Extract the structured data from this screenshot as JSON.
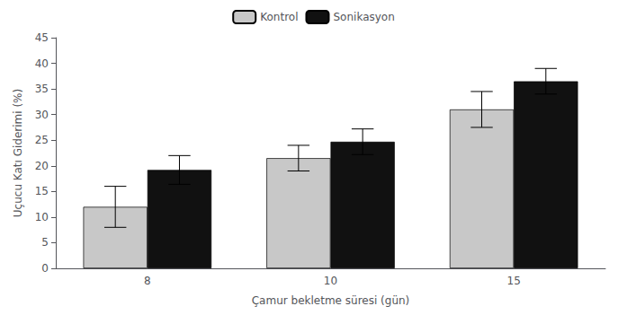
{
  "chart_data": {
    "type": "bar",
    "xlabel": "Çamur bekletme süresi (gün)",
    "ylabel": "Uçucu Katı Giderimi (%)",
    "categories": [
      "8",
      "10",
      "15"
    ],
    "series": [
      {
        "name": "Kontrol",
        "color": "#c8c8c8",
        "values": [
          12.0,
          21.5,
          31.0
        ],
        "errors": [
          4.0,
          2.5,
          3.5
        ]
      },
      {
        "name": "Sonikasyon",
        "color": "#111111",
        "values": [
          19.2,
          24.7,
          36.5
        ],
        "errors": [
          2.8,
          2.5,
          2.5
        ]
      }
    ],
    "ylim": [
      0,
      45
    ],
    "yticks": [
      0,
      5,
      10,
      15,
      20,
      25,
      30,
      35,
      40,
      45
    ],
    "grid": false,
    "legend": "top"
  }
}
